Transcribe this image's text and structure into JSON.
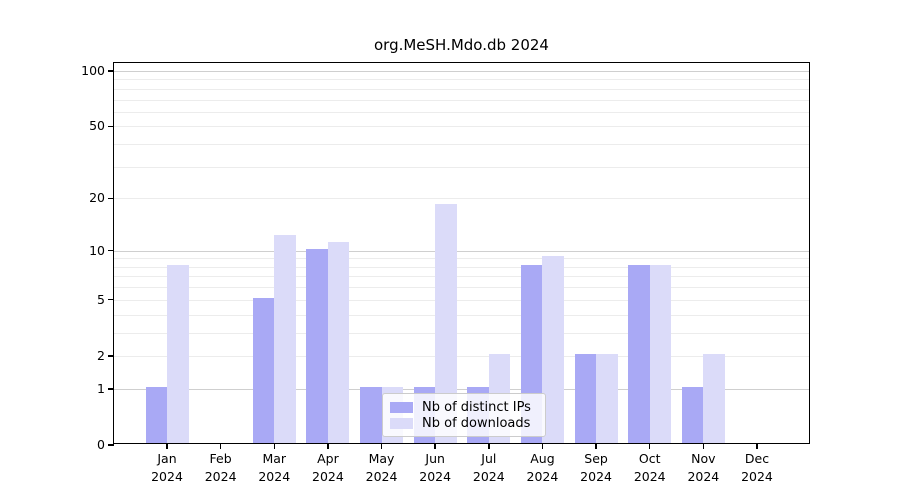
{
  "title": "org.MeSH.Mdo.db 2024",
  "chart_data": {
    "type": "bar",
    "title": "org.MeSH.Mdo.db 2024",
    "categories": [
      "Jan 2024",
      "Feb 2024",
      "Mar 2024",
      "Apr 2024",
      "May 2024",
      "Jun 2024",
      "Jul 2024",
      "Aug 2024",
      "Sep 2024",
      "Oct 2024",
      "Nov 2024",
      "Dec 2024"
    ],
    "series": [
      {
        "name": "Nb of distinct IPs",
        "color": "#a9a9f5",
        "values": [
          1,
          0,
          5,
          10,
          1,
          1,
          1,
          8,
          2,
          8,
          1,
          0
        ]
      },
      {
        "name": "Nb of downloads",
        "color": "#dbdbf9",
        "values": [
          8,
          0,
          12,
          11,
          1,
          18,
          2,
          9,
          2,
          8,
          2,
          0
        ]
      }
    ],
    "xlabel": "",
    "ylabel": "",
    "yscale": "log1p",
    "ylim": [
      0,
      110.4
    ],
    "yticks": [
      0,
      1,
      2,
      5,
      10,
      20,
      50,
      100
    ],
    "grid_major": [
      1,
      10,
      100
    ],
    "grid_minor": [
      2,
      3,
      4,
      5,
      6,
      7,
      8,
      9,
      20,
      30,
      40,
      50,
      60,
      70,
      80,
      90
    ],
    "grid": true,
    "legend_position": "inside lower-center",
    "background": "#ffffff"
  },
  "legend": {
    "items": [
      {
        "label": "Nb of distinct IPs"
      },
      {
        "label": "Nb of downloads"
      }
    ]
  }
}
